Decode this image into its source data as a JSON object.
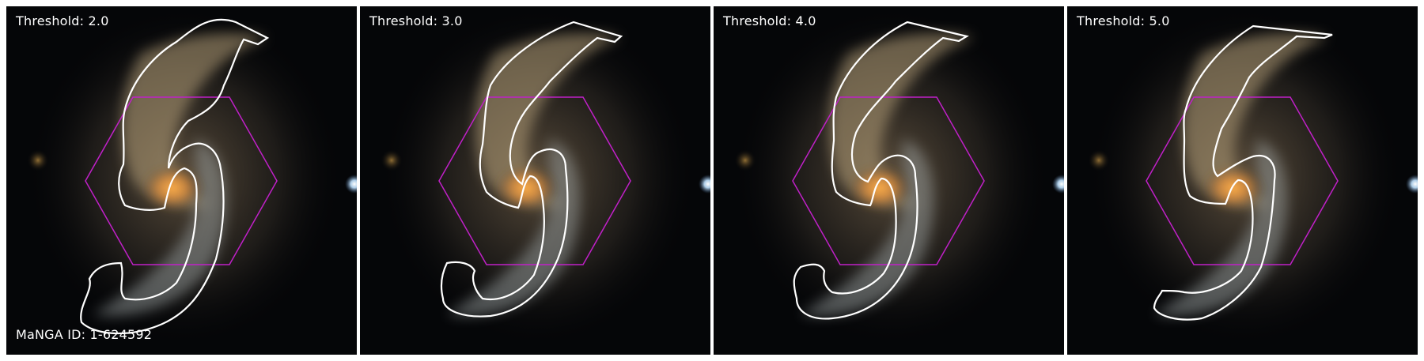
{
  "panels": [
    {
      "threshold_label": "Threshold: 2.0"
    },
    {
      "threshold_label": "Threshold: 3.0"
    },
    {
      "threshold_label": "Threshold: 4.0"
    },
    {
      "threshold_label": "Threshold: 5.0"
    }
  ],
  "manga_id_label": "MaNGA ID: 1-624592",
  "colors": {
    "background": "#050608",
    "galaxy_core": "#f0a04a",
    "galaxy_arms": "#b8a27a",
    "contour": "#ffffff",
    "ifu_hexagon": "#c020c8",
    "star": "#bfe2ff"
  },
  "icons": {
    "contour": "segmentation-contour-icon",
    "hexagon": "ifu-hexagon-icon"
  }
}
